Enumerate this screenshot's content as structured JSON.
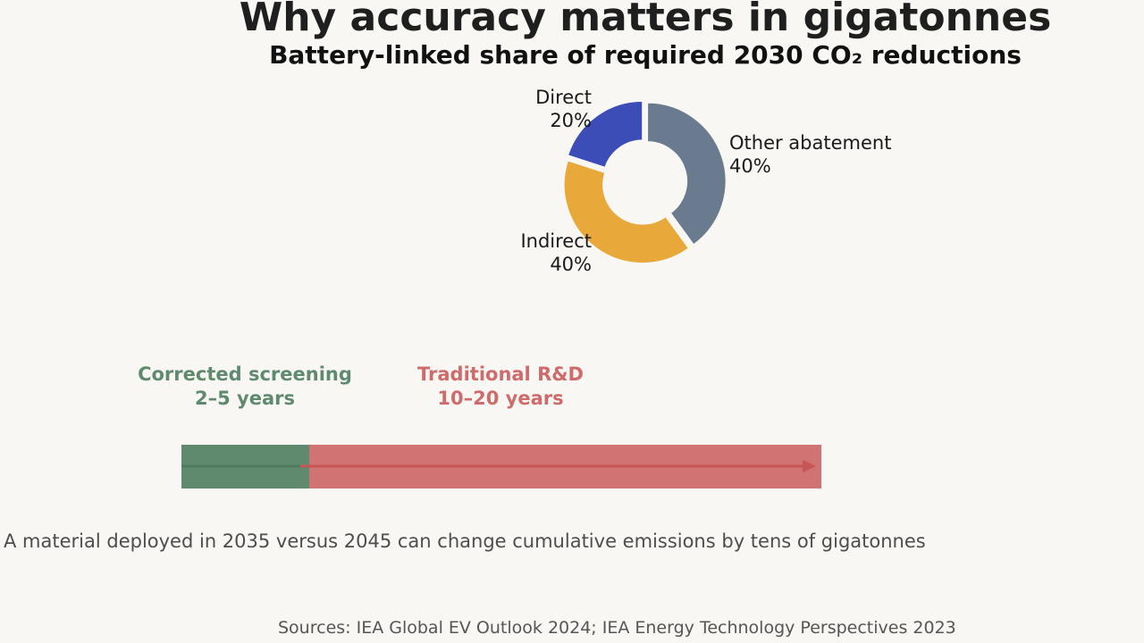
{
  "chart_data": [
    {
      "type": "pie",
      "title": "Why accuracy matters in gigatonnes",
      "subtitle": "Battery-linked share of required 2030 CO₂ reductions",
      "slices": [
        {
          "name": "Other abatement",
          "value": 40,
          "label": "40%",
          "color": "#6a7b8f"
        },
        {
          "name": "Indirect",
          "value": 40,
          "label": "40%",
          "color": "#e8a83a"
        },
        {
          "name": "Direct",
          "value": 20,
          "label": "20%",
          "color": "#3d4db7"
        }
      ]
    },
    {
      "type": "bar",
      "orientation": "horizontal",
      "unit": "years",
      "series": [
        {
          "name": "Corrected screening",
          "range_label": "2–5 years",
          "value": [
            2,
            5
          ],
          "color": "#5f8a6e"
        },
        {
          "name": "Traditional R&D",
          "range_label": "10–20 years",
          "value": [
            10,
            20
          ],
          "color": "#cf6b6b"
        }
      ]
    }
  ],
  "message": "A material deployed in 2035 versus 2045 can change cumulative emissions by tens of gigatonnes",
  "sources": "Sources: IEA Global EV Outlook 2024; IEA Energy Technology Perspectives 2023"
}
